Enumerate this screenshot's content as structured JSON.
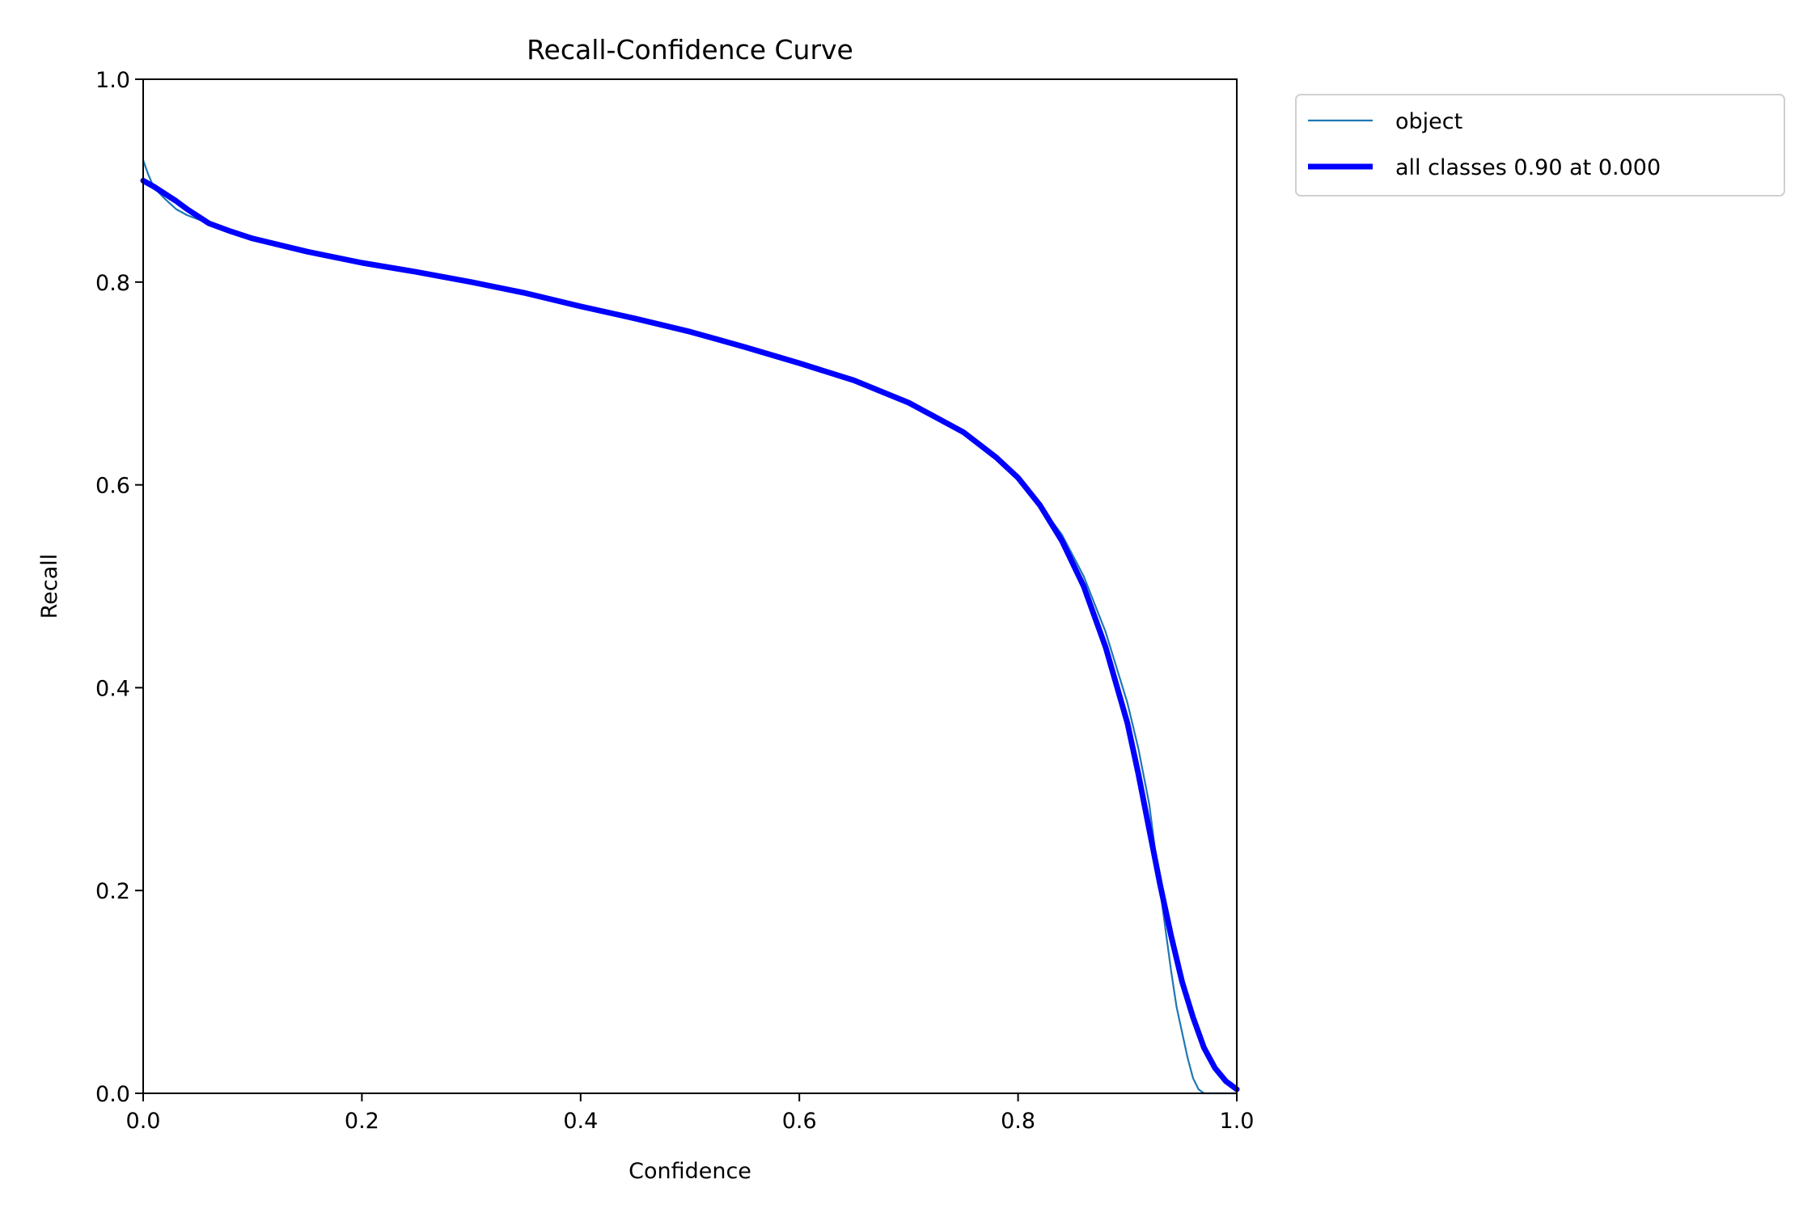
{
  "chart_data": {
    "type": "line",
    "title": "Recall-Confidence Curve",
    "xlabel": "Confidence",
    "ylabel": "Recall",
    "xlim": [
      0.0,
      1.0
    ],
    "ylim": [
      0.0,
      1.0
    ],
    "x_ticks": [
      "0.0",
      "0.2",
      "0.4",
      "0.6",
      "0.8",
      "1.0"
    ],
    "y_ticks": [
      "0.0",
      "0.2",
      "0.4",
      "0.6",
      "0.8",
      "1.0"
    ],
    "grid": false,
    "legend_position": "outside-top-right",
    "series": [
      {
        "name": "object",
        "color": "#1f77b4",
        "style": "thin",
        "x": [
          0.0,
          0.005,
          0.01,
          0.02,
          0.03,
          0.04,
          0.05,
          0.06,
          0.08,
          0.1,
          0.15,
          0.2,
          0.25,
          0.3,
          0.35,
          0.4,
          0.45,
          0.5,
          0.55,
          0.6,
          0.65,
          0.7,
          0.75,
          0.78,
          0.8,
          0.82,
          0.84,
          0.86,
          0.88,
          0.9,
          0.91,
          0.92,
          0.93,
          0.94,
          0.945,
          0.95,
          0.955,
          0.96,
          0.965,
          0.97,
          0.98,
          1.0
        ],
        "y": [
          0.92,
          0.905,
          0.893,
          0.882,
          0.872,
          0.866,
          0.862,
          0.858,
          0.851,
          0.843,
          0.83,
          0.819,
          0.81,
          0.8,
          0.789,
          0.776,
          0.764,
          0.751,
          0.736,
          0.72,
          0.703,
          0.681,
          0.652,
          0.627,
          0.607,
          0.58,
          0.551,
          0.51,
          0.455,
          0.385,
          0.34,
          0.285,
          0.2,
          0.12,
          0.085,
          0.06,
          0.035,
          0.015,
          0.004,
          0.0,
          0.0,
          0.0
        ]
      },
      {
        "name": "all classes 0.90 at 0.000",
        "color": "#0000ff",
        "style": "thick",
        "x": [
          0.0,
          0.01,
          0.02,
          0.03,
          0.04,
          0.05,
          0.06,
          0.08,
          0.1,
          0.15,
          0.2,
          0.25,
          0.3,
          0.35,
          0.4,
          0.45,
          0.5,
          0.55,
          0.6,
          0.65,
          0.7,
          0.75,
          0.78,
          0.8,
          0.82,
          0.84,
          0.86,
          0.88,
          0.9,
          0.91,
          0.92,
          0.93,
          0.94,
          0.95,
          0.96,
          0.97,
          0.98,
          0.99,
          1.0
        ],
        "y": [
          0.9,
          0.894,
          0.887,
          0.88,
          0.872,
          0.865,
          0.858,
          0.85,
          0.843,
          0.83,
          0.819,
          0.81,
          0.8,
          0.789,
          0.776,
          0.764,
          0.751,
          0.736,
          0.72,
          0.703,
          0.681,
          0.652,
          0.627,
          0.607,
          0.58,
          0.545,
          0.5,
          0.44,
          0.365,
          0.315,
          0.26,
          0.205,
          0.155,
          0.11,
          0.075,
          0.045,
          0.025,
          0.012,
          0.004
        ]
      }
    ]
  }
}
